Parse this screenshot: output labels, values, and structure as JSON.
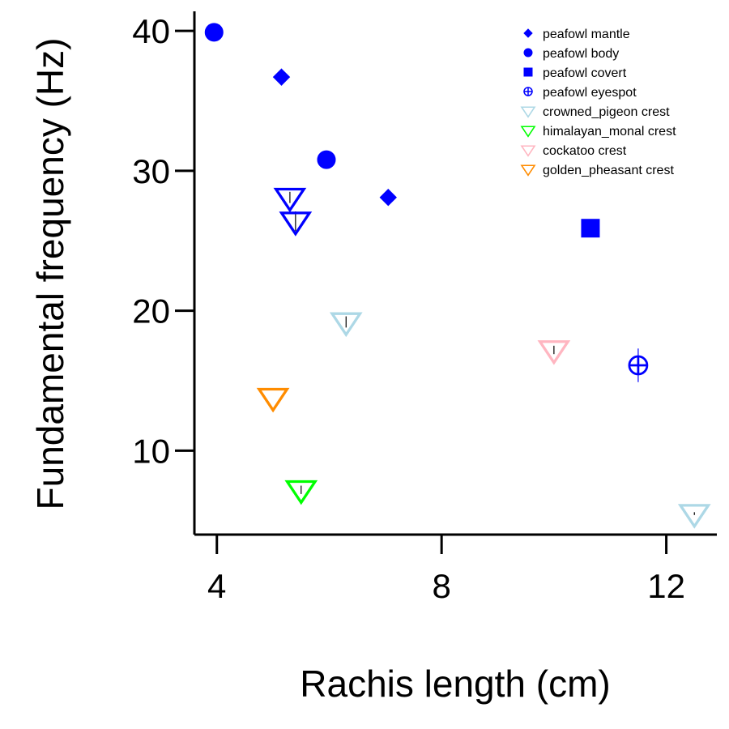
{
  "chart_data": {
    "type": "scatter",
    "xlabel": "Rachis length (cm)",
    "ylabel": "Fundamental frequency (Hz)",
    "xlim": [
      3.6,
      12.9
    ],
    "ylim": [
      4,
      41.4
    ],
    "xticks": [
      4,
      8,
      12
    ],
    "yticks": [
      10,
      20,
      30,
      40
    ],
    "grid": false,
    "legend_placement": "top-right",
    "series": [
      {
        "name": "peafowl mantle",
        "marker": "diamond",
        "filled": true,
        "color": "#0000ff",
        "points": [
          {
            "x": 5.15,
            "y": 36.7,
            "err": 0.6
          },
          {
            "x": 7.05,
            "y": 28.1,
            "err": 0
          }
        ]
      },
      {
        "name": "peafowl body",
        "marker": "circle",
        "filled": true,
        "color": "#0000ff",
        "points": [
          {
            "x": 3.95,
            "y": 39.9,
            "err": 0
          },
          {
            "x": 5.95,
            "y": 30.8,
            "err": 0
          }
        ]
      },
      {
        "name": "peafowl covert",
        "marker": "square",
        "filled": true,
        "color": "#0000ff",
        "points": [
          {
            "x": 10.65,
            "y": 25.9,
            "err": 0
          }
        ]
      },
      {
        "name": "peafowl eyespot",
        "marker": "circle-plus",
        "filled": false,
        "color": "#0000ff",
        "points": [
          {
            "x": 11.5,
            "y": 16.1,
            "err": 1.2
          }
        ]
      },
      {
        "name": "crowned_pigeon crest",
        "marker": "triangle-down",
        "filled": false,
        "color": "#add8e6",
        "points": [
          {
            "x": 6.3,
            "y": 19.2,
            "err": 0.4
          },
          {
            "x": 12.5,
            "y": 5.5,
            "err": 0.1
          }
        ]
      },
      {
        "name": "himalayan_monal crest",
        "marker": "triangle-down",
        "filled": false,
        "color": "#00ff00",
        "points": [
          {
            "x": 5.5,
            "y": 7.2,
            "err": 0.3
          }
        ]
      },
      {
        "name": "cockatoo crest",
        "marker": "triangle-down",
        "filled": false,
        "color": "#ffb6c1",
        "points": [
          {
            "x": 10.0,
            "y": 17.2,
            "err": 0.3
          }
        ]
      },
      {
        "name": "golden_pheasant crest",
        "marker": "triangle-down",
        "filled": false,
        "color": "#ff8c00",
        "points": [
          {
            "x": 5.0,
            "y": 13.8,
            "err": 0
          }
        ]
      },
      {
        "name": "",
        "marker": "triangle-down",
        "filled": false,
        "color": "#0000ff",
        "points": [
          {
            "x": 5.3,
            "y": 28.1,
            "err": 0.4
          },
          {
            "x": 5.4,
            "y": 26.4,
            "err": 0.7
          }
        ]
      }
    ]
  }
}
